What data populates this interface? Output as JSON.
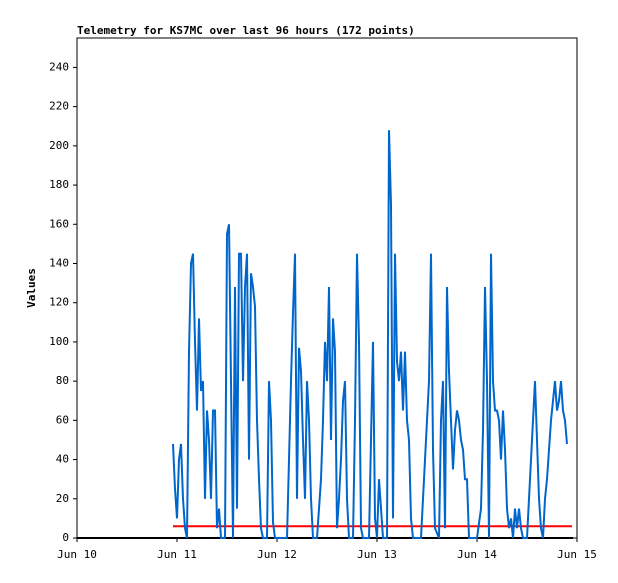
{
  "chart_data": {
    "type": "line",
    "title": "Telemetry for KS7MC over last 96 hours (172 points)",
    "ylabel": "Values",
    "xlim": [
      0,
      5
    ],
    "xticks": [
      {
        "value": 0,
        "label": "Jun 10"
      },
      {
        "value": 1,
        "label": "Jun 11"
      },
      {
        "value": 2,
        "label": "Jun 12"
      },
      {
        "value": 3,
        "label": "Jun 13"
      },
      {
        "value": 4,
        "label": "Jun 14"
      },
      {
        "value": 5,
        "label": "Jun 15"
      }
    ],
    "ylim": [
      0,
      255
    ],
    "yticks": [
      0,
      20,
      40,
      60,
      80,
      100,
      120,
      140,
      160,
      180,
      200,
      220,
      240
    ],
    "grid": false,
    "series": [
      {
        "color": "#000000",
        "x": [
          0,
          4.96
        ],
        "values": [
          0,
          0
        ]
      },
      {
        "color": "#ff0000",
        "x": [
          0.96,
          4.95
        ],
        "values": [
          6,
          6
        ]
      },
      {
        "color": "#0066cc",
        "x": [
          0.96,
          0.98,
          1.0,
          1.02,
          1.04,
          1.06,
          1.08,
          1.1,
          1.12,
          1.14,
          1.16,
          1.18,
          1.2,
          1.22,
          1.24,
          1.26,
          1.28,
          1.3,
          1.32,
          1.34,
          1.36,
          1.38,
          1.4,
          1.42,
          1.44,
          1.48,
          1.5,
          1.52,
          1.54,
          1.56,
          1.58,
          1.6,
          1.62,
          1.64,
          1.66,
          1.68,
          1.7,
          1.72,
          1.74,
          1.76,
          1.78,
          1.8,
          1.82,
          1.84,
          1.86,
          1.9,
          1.92,
          1.94,
          1.96,
          1.98,
          2.1,
          2.14,
          2.16,
          2.18,
          2.2,
          2.22,
          2.24,
          2.26,
          2.28,
          2.3,
          2.32,
          2.34,
          2.36,
          2.4,
          2.44,
          2.46,
          2.48,
          2.5,
          2.52,
          2.54,
          2.56,
          2.58,
          2.6,
          2.62,
          2.64,
          2.66,
          2.68,
          2.7,
          2.72,
          2.76,
          2.78,
          2.8,
          2.82,
          2.84,
          2.86,
          2.92,
          2.96,
          2.98,
          3.0,
          3.02,
          3.04,
          3.06,
          3.1,
          3.12,
          3.14,
          3.16,
          3.18,
          3.2,
          3.22,
          3.24,
          3.26,
          3.28,
          3.3,
          3.32,
          3.34,
          3.36,
          3.44,
          3.48,
          3.5,
          3.52,
          3.54,
          3.56,
          3.58,
          3.62,
          3.64,
          3.66,
          3.68,
          3.7,
          3.72,
          3.74,
          3.76,
          3.78,
          3.8,
          3.82,
          3.84,
          3.86,
          3.88,
          3.9,
          3.92,
          4.0,
          4.04,
          4.06,
          4.08,
          4.1,
          4.12,
          4.14,
          4.16,
          4.18,
          4.2,
          4.22,
          4.24,
          4.26,
          4.28,
          4.3,
          4.32,
          4.34,
          4.36,
          4.38,
          4.4,
          4.42,
          4.44,
          4.46,
          4.5,
          4.54,
          4.56,
          4.58,
          4.6,
          4.62,
          4.64,
          4.66,
          4.68,
          4.7,
          4.72,
          4.74,
          4.76,
          4.78,
          4.8,
          4.82,
          4.84,
          4.86,
          4.88,
          4.9
        ],
        "values": [
          48,
          25,
          10,
          40,
          48,
          20,
          5,
          0,
          95,
          140,
          145,
          100,
          65,
          112,
          75,
          80,
          20,
          65,
          50,
          20,
          65,
          65,
          5,
          15,
          0,
          0,
          155,
          160,
          80,
          0,
          128,
          15,
          145,
          145,
          80,
          128,
          145,
          40,
          135,
          128,
          118,
          60,
          30,
          5,
          0,
          0,
          80,
          60,
          8,
          0,
          0,
          80,
          115,
          145,
          20,
          97,
          85,
          50,
          20,
          80,
          60,
          20,
          0,
          0,
          30,
          60,
          100,
          80,
          128,
          50,
          112,
          95,
          5,
          20,
          40,
          70,
          80,
          20,
          0,
          0,
          60,
          145,
          100,
          5,
          0,
          0,
          100,
          10,
          0,
          30,
          15,
          0,
          0,
          208,
          170,
          10,
          145,
          90,
          80,
          95,
          65,
          95,
          60,
          50,
          10,
          0,
          0,
          40,
          60,
          80,
          145,
          45,
          5,
          0,
          60,
          80,
          5,
          128,
          85,
          60,
          35,
          55,
          65,
          60,
          50,
          45,
          30,
          30,
          0,
          0,
          15,
          55,
          128,
          80,
          0,
          145,
          80,
          65,
          65,
          60,
          40,
          65,
          45,
          15,
          5,
          10,
          0,
          15,
          5,
          15,
          5,
          0,
          0,
          40,
          60,
          80,
          50,
          20,
          5,
          0,
          20,
          30,
          45,
          60,
          70,
          80,
          65,
          70,
          80,
          65,
          60,
          48
        ]
      }
    ]
  }
}
